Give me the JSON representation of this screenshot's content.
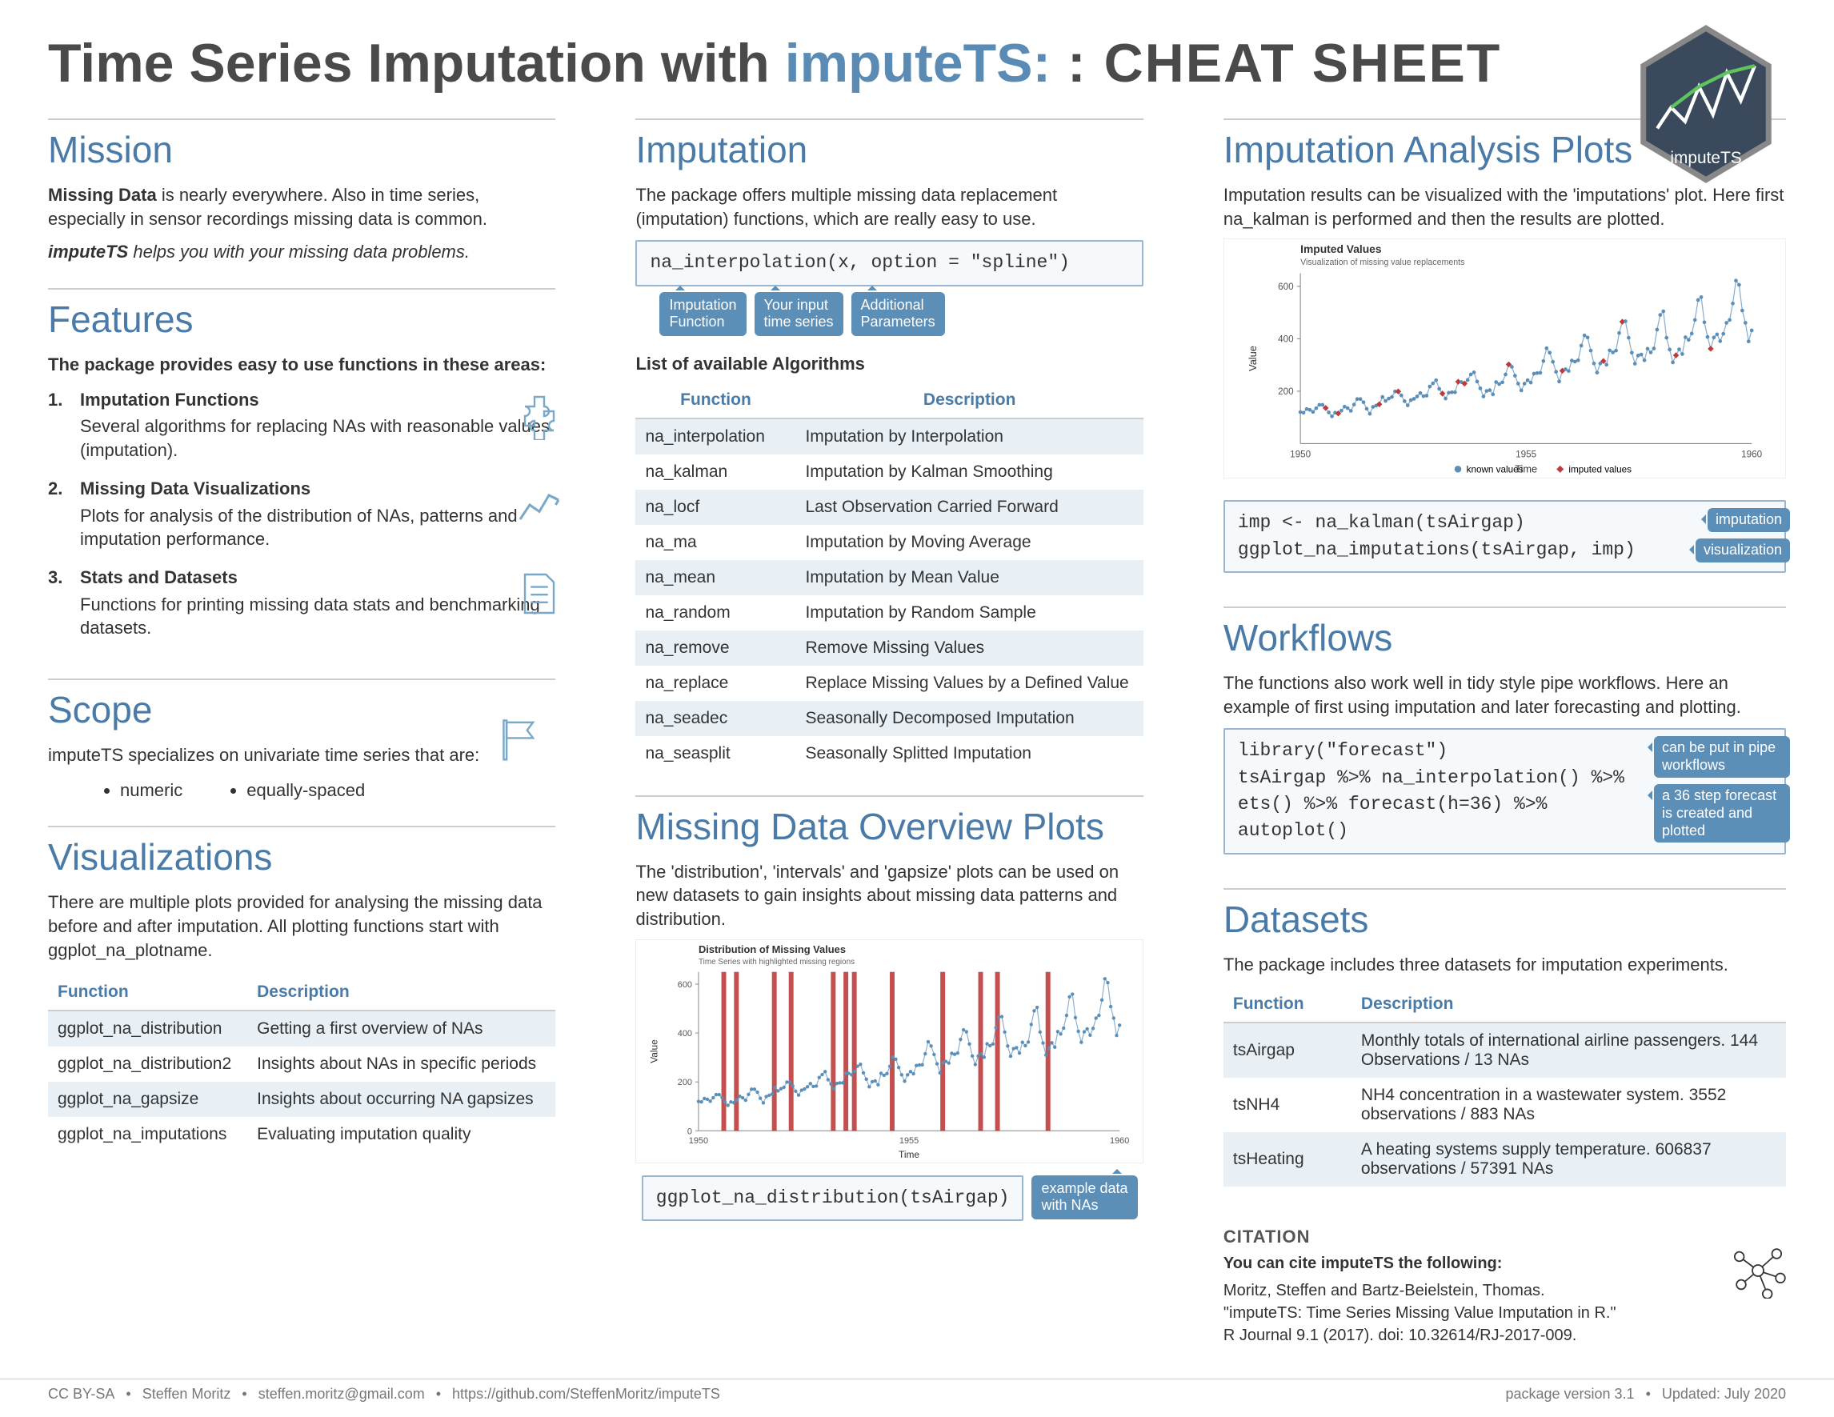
{
  "header": {
    "title_pre": "Time Series Imputation with ",
    "title_pkg": "imputeTS:",
    "title_post": " : CHEAT SHEET",
    "logo_label": "imputeTS"
  },
  "mission": {
    "title": "Mission",
    "p1_bold": "Missing Data",
    "p1": " is nearly everywhere. Also in time series, especially in sensor recordings missing data is common.",
    "p2_bold": "imputeTS",
    "p2": "  helps you with your missing data problems."
  },
  "features": {
    "title": "Features",
    "intro": "The package provides easy to use functions in these areas:",
    "items": [
      {
        "title": "Imputation Functions",
        "desc": "Several algorithms for replacing NAs with reasonable values (imputation)."
      },
      {
        "title": "Missing Data Visualizations",
        "desc": "Plots for analysis of the distribution of NAs, patterns and imputation performance."
      },
      {
        "title": "Stats and Datasets",
        "desc": "Functions for printing missing data stats and benchmarking datasets."
      }
    ]
  },
  "scope": {
    "title": "Scope",
    "text": "imputeTS specializes on univariate time series that are:",
    "items": [
      "numeric",
      "equally-spaced"
    ]
  },
  "visual": {
    "title": "Visualizations",
    "text": "There are multiple plots provided for analysing the missing data before and after imputation.  All plotting functions start with ggplot_na_plotname.",
    "th1": "Function",
    "th2": "Description",
    "rows": [
      {
        "f": "ggplot_na_distribution",
        "d": "Getting a first overview of NAs"
      },
      {
        "f": "ggplot_na_distribution2",
        "d": "Insights about NAs in specific periods"
      },
      {
        "f": "ggplot_na_gapsize",
        "d": "Insights about occurring NA gapsizes"
      },
      {
        "f": "ggplot_na_imputations",
        "d": "Evaluating imputation quality"
      }
    ]
  },
  "imputation": {
    "title": "Imputation",
    "text": "The package offers multiple missing data replacement (imputation) functions, which are really easy to use.",
    "code": "na_interpolation(x, option = \"spline\")",
    "tags": [
      "Imputation\nFunction",
      "Your input\ntime series",
      "Additional\nParameters"
    ],
    "list_label": "List of available Algorithms",
    "th1": "Function",
    "th2": "Description",
    "rows": [
      {
        "f": "na_interpolation",
        "d": "Imputation by Interpolation"
      },
      {
        "f": "na_kalman",
        "d": "Imputation by Kalman Smoothing"
      },
      {
        "f": "na_locf",
        "d": "Last Observation Carried Forward"
      },
      {
        "f": "na_ma",
        "d": "Imputation by Moving Average"
      },
      {
        "f": "na_mean",
        "d": "Imputation by Mean Value"
      },
      {
        "f": "na_random",
        "d": "Imputation by Random Sample"
      },
      {
        "f": "na_remove",
        "d": "Remove Missing Values"
      },
      {
        "f": "na_replace",
        "d": "Replace Missing Values by a Defined Value"
      },
      {
        "f": "na_seadec",
        "d": "Seasonally Decomposed Imputation"
      },
      {
        "f": "na_seasplit",
        "d": "Seasonally Splitted Imputation"
      }
    ]
  },
  "overview": {
    "title": "Missing Data Overview Plots",
    "text": "The 'distribution', 'intervals' and 'gapsize' plots can be used on new datasets to gain insights about missing data  patterns and distribution.",
    "chart_title": "Distribution of Missing Values",
    "chart_sub": "Time Series with highlighted missing regions",
    "chart_ylabel": "Value",
    "chart_xlabel": "Time",
    "chart_xticks": [
      "1950",
      "1955",
      "1960"
    ],
    "chart_yticks": [
      "0",
      "200",
      "400",
      "600"
    ],
    "missing_bands": [
      0.06,
      0.09,
      0.18,
      0.22,
      0.32,
      0.35,
      0.37,
      0.46,
      0.58,
      0.67,
      0.71,
      0.83
    ],
    "series_color": "#5c8fb8",
    "band_color": "#b93030",
    "code": "ggplot_na_distribution(tsAirgap)",
    "tag": "example data\nwith NAs"
  },
  "analysis": {
    "title": "Imputation Analysis Plots",
    "text": "Imputation results can be visualized with the 'imputations' plot. Here first na_kalman is performed and then the results are plotted.",
    "chart_title": "Imputed Values",
    "chart_sub": "Visualization of missing value replacements",
    "chart_ylabel": "Value",
    "chart_xlabel": "Time",
    "chart_xticks": [
      "1950",
      "1955",
      "1960"
    ],
    "chart_yticks": [
      "200",
      "400",
      "600"
    ],
    "legend": [
      "known values",
      "imputed values"
    ],
    "known_color": "#5c8fb8",
    "imputed_color": "#c13a3a",
    "code": "imp <- na_kalman(tsAirgap)\nggplot_na_imputations(tsAirgap, imp)",
    "tags": [
      "imputation",
      "visualization"
    ]
  },
  "workflows": {
    "title": "Workflows",
    "text": "The functions also work well in tidy style pipe workflows. Here an example of first using imputation and later forecasting and plotting.",
    "code": "library(\"forecast\")\ntsAirgap %>% na_interpolation() %>%\nets() %>% forecast(h=36) %>%\nautoplot()",
    "tags": [
      "can be put in pipe\nworkflows",
      "a 36 step forecast\nis created and\nplotted"
    ]
  },
  "datasets": {
    "title": "Datasets",
    "text": "The package includes three datasets for imputation experiments.",
    "th1": "Function",
    "th2": "Description",
    "rows": [
      {
        "f": "tsAirgap",
        "d": "Monthly totals of international airline passengers. 144 Observations / 13 NAs"
      },
      {
        "f": "tsNH4",
        "d": "NH4 concentration in a wastewater system. 3552 observations / 883 NAs"
      },
      {
        "f": "tsHeating",
        "d": "A heating systems supply temperature. 606837 observations / 57391 NAs"
      }
    ]
  },
  "citation": {
    "title": "CITATION",
    "lead": "You can cite imputeTS the following:",
    "text": "Moritz, Steffen and Bartz-Beielstein, Thomas.\n\"imputeTS: Time Series Missing Value Imputation in R.\"\nR Journal 9.1 (2017). doi: 10.32614/RJ-2017-009."
  },
  "footer": {
    "left": [
      "CC BY-SA",
      "Steffen Moritz",
      "steffen.moritz@gmail.com",
      "https://github.com/SteffenMoritz/imputeTS"
    ],
    "right": [
      "package version  3.1",
      "Updated: July 2020"
    ]
  },
  "series": [
    120,
    118,
    132,
    129,
    121,
    135,
    148,
    148,
    136,
    119,
    104,
    118,
    115,
    126,
    141,
    135,
    125,
    149,
    170,
    170,
    158,
    133,
    114,
    140,
    145,
    150,
    178,
    163,
    172,
    178,
    199,
    199,
    184,
    162,
    146,
    166,
    171,
    180,
    193,
    181,
    183,
    218,
    230,
    242,
    209,
    191,
    172,
    194,
    196,
    196,
    236,
    235,
    229,
    243,
    264,
    272,
    237,
    211,
    180,
    201,
    204,
    188,
    235,
    227,
    234,
    264,
    302,
    293,
    259,
    229,
    203,
    229,
    242,
    233,
    267,
    269,
    270,
    315,
    364,
    347,
    312,
    274,
    237,
    278,
    284,
    277,
    317,
    313,
    318,
    374,
    413,
    405,
    355,
    306,
    271,
    306,
    315,
    301,
    356,
    348,
    355,
    422,
    465,
    467,
    404,
    347,
    305,
    336,
    340,
    318,
    362,
    348,
    363,
    435,
    491,
    505,
    404,
    359,
    310,
    337,
    360,
    342,
    406,
    396,
    420,
    472,
    548,
    559,
    463,
    407,
    362,
    405,
    417,
    391,
    419,
    461,
    472,
    535,
    622,
    606,
    508,
    461,
    390,
    432
  ]
}
